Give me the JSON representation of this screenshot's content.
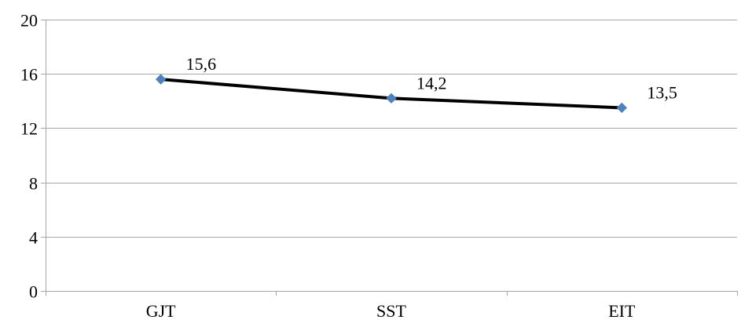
{
  "chart_data": {
    "type": "line",
    "title": "",
    "xlabel": "",
    "ylabel": "",
    "categories": [
      "GJT",
      "SST",
      "EIT"
    ],
    "series": [
      {
        "values": [
          15.6,
          14.2,
          13.5
        ],
        "data_labels": [
          "15,6",
          "14,2",
          "13,5"
        ],
        "line_color": "#000000",
        "marker_color": "#4F81BD",
        "marker": "diamond"
      }
    ],
    "ylim": [
      0,
      20
    ],
    "yticks": [
      0,
      4,
      8,
      12,
      16,
      20
    ],
    "ytick_labels": [
      "0",
      "4",
      "8",
      "12",
      "16",
      "20"
    ],
    "grid": true,
    "grid_color": "#A6A6A6",
    "legend": "none"
  }
}
